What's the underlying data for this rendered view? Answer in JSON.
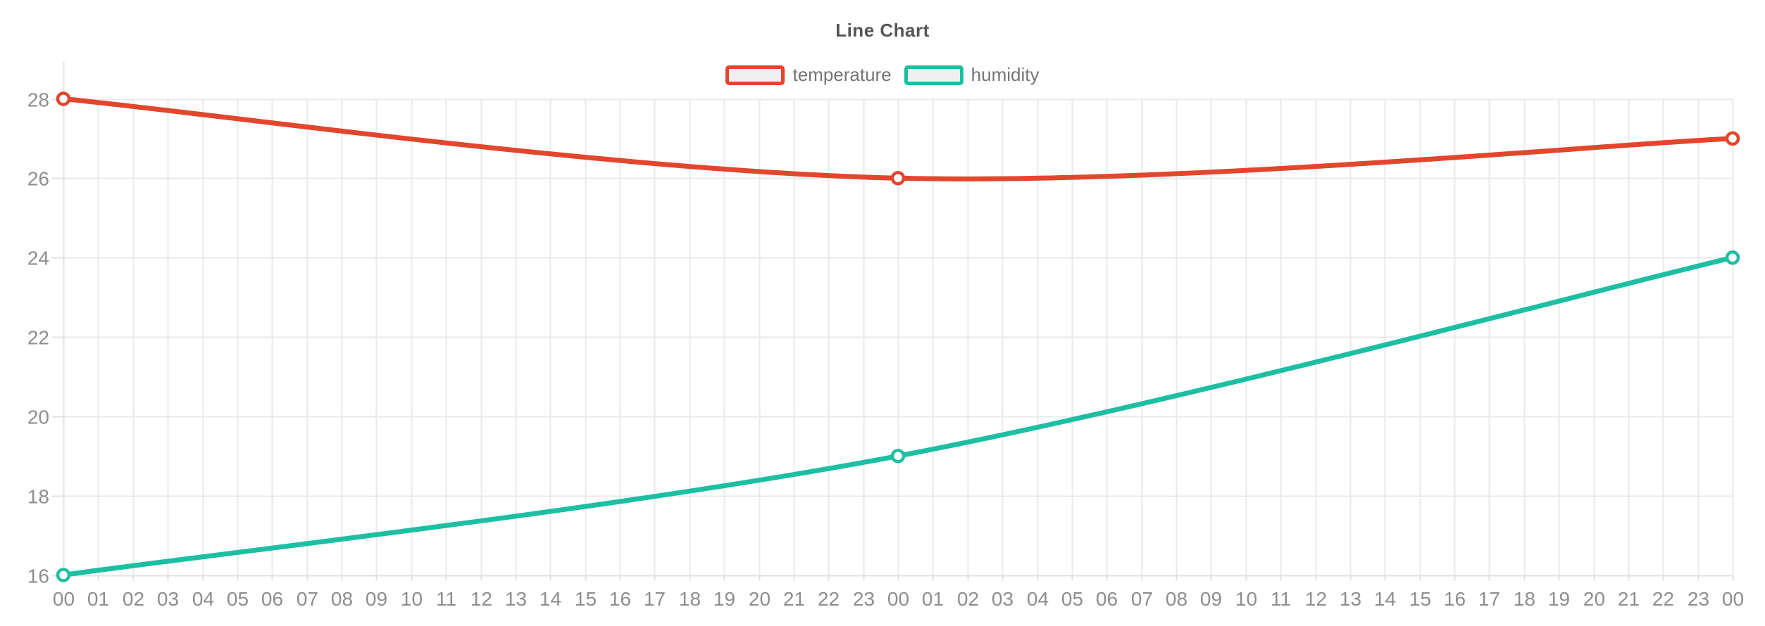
{
  "chart_data": {
    "type": "line",
    "title": "Line Chart",
    "xlabel": "",
    "ylabel": "",
    "x_labels": [
      "00",
      "01",
      "02",
      "03",
      "04",
      "05",
      "06",
      "07",
      "08",
      "09",
      "10",
      "11",
      "12",
      "13",
      "14",
      "15",
      "16",
      "17",
      "18",
      "19",
      "20",
      "21",
      "22",
      "23",
      "00",
      "01",
      "02",
      "03",
      "04",
      "05",
      "06",
      "07",
      "08",
      "09",
      "10",
      "11",
      "12",
      "13",
      "14",
      "15",
      "16",
      "17",
      "18",
      "19",
      "20",
      "21",
      "22",
      "23",
      "00"
    ],
    "y_ticks": [
      16,
      18,
      20,
      22,
      24,
      26,
      28
    ],
    "ylim": [
      16,
      28
    ],
    "grid": true,
    "legend_position": "top",
    "series": [
      {
        "name": "temperature",
        "color": "#e2462d",
        "points": [
          {
            "x_index": 0,
            "x_label": "00",
            "value": 28
          },
          {
            "x_index": 24,
            "x_label": "00",
            "value": 26
          },
          {
            "x_index": 48,
            "x_label": "00",
            "value": 27
          }
        ]
      },
      {
        "name": "humidity",
        "color": "#1dbfa3",
        "points": [
          {
            "x_index": 0,
            "x_label": "00",
            "value": 16
          },
          {
            "x_index": 24,
            "x_label": "00",
            "value": 19
          },
          {
            "x_index": 48,
            "x_label": "00",
            "value": 24
          }
        ]
      }
    ]
  },
  "colors": {
    "background": "#ffffff",
    "grid_line": "#e9e9e9",
    "axis_line": "#e2e2e2",
    "tick_label": "#8e8e8e",
    "title_text": "#555555",
    "legend_text": "#757575",
    "legend_swatch_fill": "#f0f0f0"
  }
}
